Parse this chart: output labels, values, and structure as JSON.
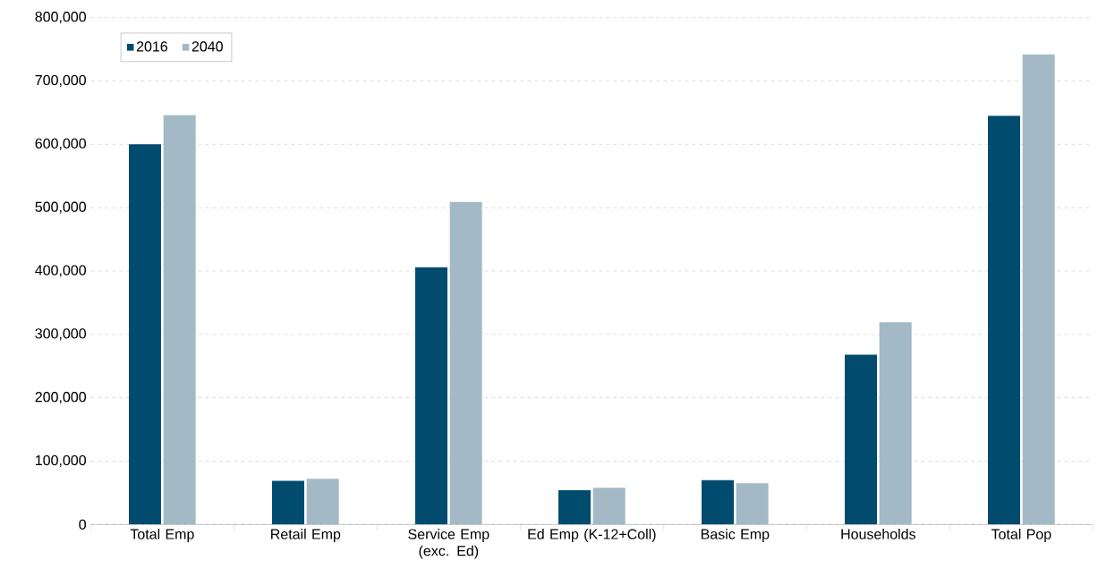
{
  "chart_data": {
    "type": "bar",
    "categories": [
      "Total Emp",
      "Retail Emp",
      "Service Emp (exc. Ed)",
      "Ed Emp (K-12+Coll)",
      "Basic Emp",
      "Households",
      "Total Pop"
    ],
    "series": [
      {
        "name": "2016",
        "color": "#004b6e",
        "values": [
          600000,
          69000,
          406000,
          54000,
          70000,
          268000,
          645000
        ]
      },
      {
        "name": "2040",
        "color": "#a3b9c6",
        "values": [
          646000,
          72000,
          509000,
          58000,
          65000,
          319000,
          742000
        ]
      }
    ],
    "ylim": [
      0,
      800000
    ],
    "yticks": [
      {
        "value": 0,
        "label": "0"
      },
      {
        "value": 100000,
        "label": "100,000"
      },
      {
        "value": 200000,
        "label": "200,000"
      },
      {
        "value": 300000,
        "label": "300,000"
      },
      {
        "value": 400000,
        "label": "400,000"
      },
      {
        "value": 500000,
        "label": "500,000"
      },
      {
        "value": 600000,
        "label": "600,000"
      },
      {
        "value": 700000,
        "label": "700,000"
      },
      {
        "value": 800000,
        "label": "800,000"
      }
    ],
    "grid": "y",
    "legend": "top left"
  }
}
